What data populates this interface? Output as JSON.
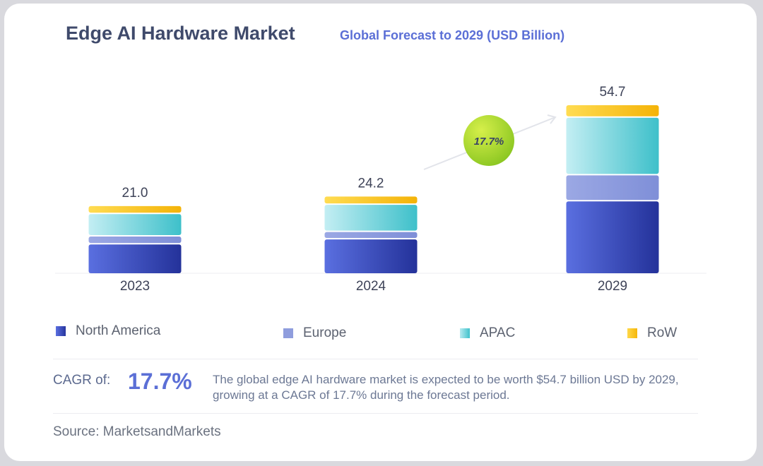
{
  "header": {
    "title": "Edge AI Hardware Market",
    "subtitle": "Global Forecast to 2029 (USD Billion)"
  },
  "chart_data": {
    "type": "bar",
    "stacked": true,
    "categories": [
      "2023",
      "2024",
      "2029"
    ],
    "totals": [
      21.0,
      24.2,
      54.7
    ],
    "total_labels": [
      "21.0",
      "24.2",
      "54.7"
    ],
    "series": [
      {
        "name": "North America",
        "values": [
          9.6,
          11.3,
          24.0
        ],
        "color": "#3a48c0"
      },
      {
        "name": "Europe",
        "values": [
          2.2,
          2.0,
          8.2
        ],
        "color": "#8f9ddd"
      },
      {
        "name": "APAC",
        "values": [
          7.0,
          8.6,
          18.8
        ],
        "color": "#5cc9d2"
      },
      {
        "name": "RoW",
        "values": [
          2.2,
          2.3,
          3.7
        ],
        "color": "#f8c321"
      }
    ],
    "growth_badge": "17.7%",
    "badge_color": "#a9d62a",
    "ylim": [
      0,
      60
    ],
    "grid": false,
    "legend_position": "bottom"
  },
  "legend": [
    "North America",
    "Europe",
    "APAC",
    "RoW"
  ],
  "cagr": {
    "label": "CAGR of:",
    "value": "17.7%",
    "description": "The global edge AI hardware market is expected to be worth $54.7 billion USD by 2029, growing at a CAGR of 17.7% during the forecast period."
  },
  "source": "Source: MarketsandMarkets"
}
